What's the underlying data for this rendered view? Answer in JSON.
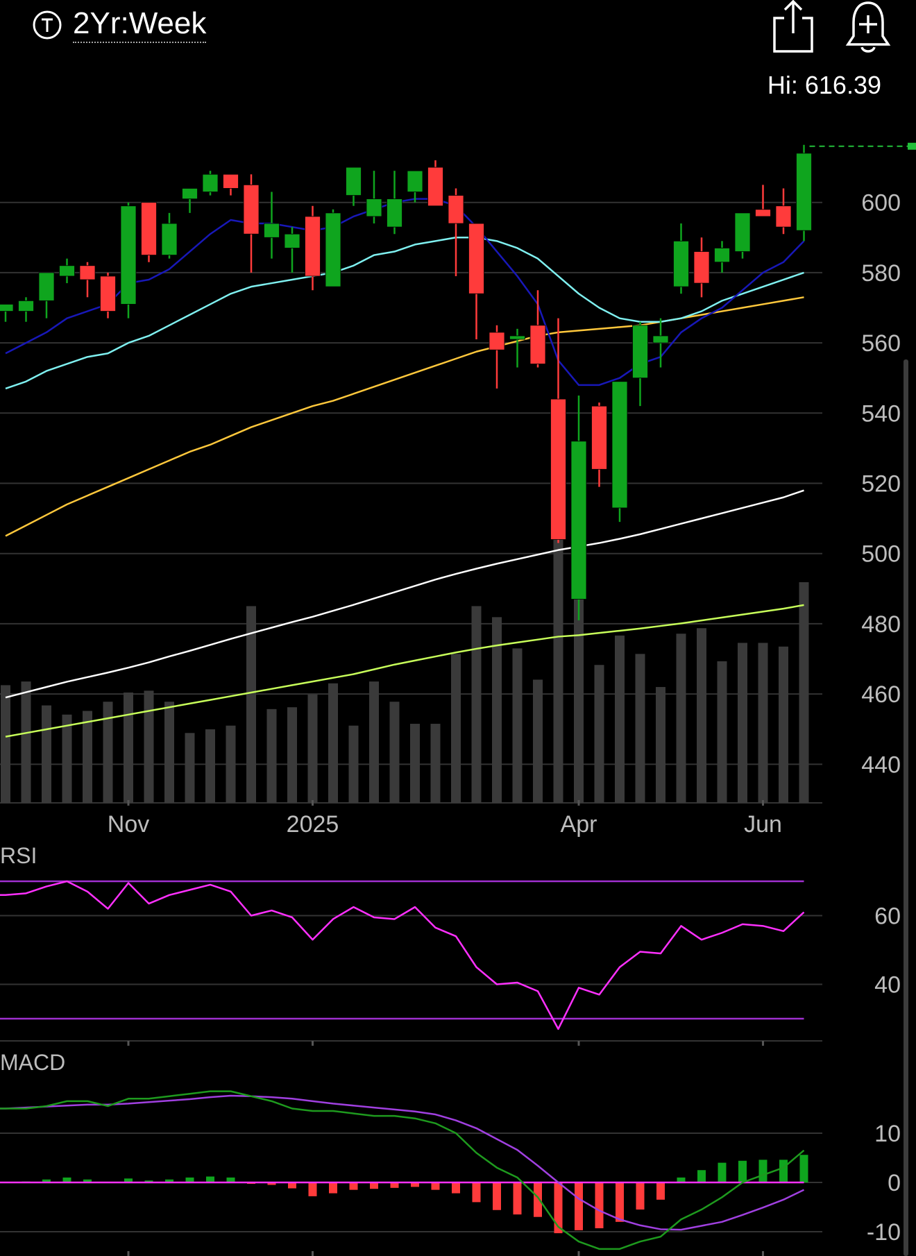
{
  "header": {
    "period_icon": "circle-t-icon",
    "period_label": "2Yr:Week",
    "share_icon": "share-icon",
    "alert_icon": "bell-plus-icon",
    "high_label": "Hi: 616.39"
  },
  "colors": {
    "background": "#000000",
    "up": "#0fa51e",
    "down": "#ff3b3b",
    "volume": "#3a3a3a",
    "grid": "#333333",
    "ma_fast": "#1818b8",
    "ma_mid": "#7ff0f0",
    "ma_slow": "#ffc83c",
    "ma_long": "#ffffff",
    "volume_ma": "#c8ff5a",
    "rsi": "#ff30ff",
    "rsi_bands": "#a030d0",
    "macd": "#1e9a1e",
    "macd_signal": "#a040e0",
    "macd_zero": "#ff30ff",
    "hi_line": "#22c03a"
  },
  "chart_data": [
    {
      "type": "candlestick",
      "title": "",
      "y_ticks": [
        440,
        460,
        480,
        500,
        520,
        540,
        560,
        580,
        600
      ],
      "ylim": [
        429,
        628
      ],
      "x_tick_labels": [
        {
          "label": "Nov",
          "index": 6
        },
        {
          "label": "2025",
          "index": 15
        },
        {
          "label": "Apr",
          "index": 28
        },
        {
          "label": "Jun",
          "index": 37
        }
      ],
      "high_value": 616.39,
      "candles": [
        {
          "o": 569,
          "h": 571,
          "l": 566,
          "c": 571
        },
        {
          "o": 569,
          "h": 573,
          "l": 566,
          "c": 572
        },
        {
          "o": 572,
          "h": 580,
          "l": 567,
          "c": 580
        },
        {
          "o": 579,
          "h": 584,
          "l": 577,
          "c": 582
        },
        {
          "o": 582,
          "h": 583,
          "l": 573,
          "c": 578
        },
        {
          "o": 579,
          "h": 580,
          "l": 567,
          "c": 569
        },
        {
          "o": 571,
          "h": 600,
          "l": 567,
          "c": 599
        },
        {
          "o": 600,
          "h": 600,
          "l": 583,
          "c": 585
        },
        {
          "o": 585,
          "h": 597,
          "l": 584,
          "c": 594
        },
        {
          "o": 601,
          "h": 604,
          "l": 597,
          "c": 604
        },
        {
          "o": 603,
          "h": 609,
          "l": 602,
          "c": 608
        },
        {
          "o": 608,
          "h": 608,
          "l": 602,
          "c": 604
        },
        {
          "o": 605,
          "h": 608,
          "l": 580,
          "c": 591
        },
        {
          "o": 590,
          "h": 603,
          "l": 584,
          "c": 594
        },
        {
          "o": 587,
          "h": 593,
          "l": 580,
          "c": 591
        },
        {
          "o": 596,
          "h": 599,
          "l": 575,
          "c": 579
        },
        {
          "o": 576,
          "h": 598,
          "l": 576,
          "c": 597
        },
        {
          "o": 602,
          "h": 610,
          "l": 599,
          "c": 610
        },
        {
          "o": 596,
          "h": 609,
          "l": 594,
          "c": 601
        },
        {
          "o": 593,
          "h": 609,
          "l": 591,
          "c": 601
        },
        {
          "o": 603,
          "h": 609,
          "l": 600,
          "c": 609
        },
        {
          "o": 610,
          "h": 612,
          "l": 599,
          "c": 599
        },
        {
          "o": 602,
          "h": 604,
          "l": 579,
          "c": 594
        },
        {
          "o": 594,
          "h": 594,
          "l": 561,
          "c": 574
        },
        {
          "o": 563,
          "h": 565,
          "l": 547,
          "c": 558
        },
        {
          "o": 561,
          "h": 564,
          "l": 553,
          "c": 562
        },
        {
          "o": 565,
          "h": 575,
          "l": 553,
          "c": 554
        },
        {
          "o": 544,
          "h": 567,
          "l": 503,
          "c": 504
        },
        {
          "o": 487,
          "h": 545,
          "l": 481,
          "c": 532
        },
        {
          "o": 542,
          "h": 543,
          "l": 519,
          "c": 524
        },
        {
          "o": 513,
          "h": 548,
          "l": 509,
          "c": 549
        },
        {
          "o": 550,
          "h": 566,
          "l": 542,
          "c": 565
        },
        {
          "o": 560,
          "h": 567,
          "l": 553,
          "c": 562
        },
        {
          "o": 576,
          "h": 594,
          "l": 574,
          "c": 589
        },
        {
          "o": 586,
          "h": 590,
          "l": 573,
          "c": 577
        },
        {
          "o": 583,
          "h": 589,
          "l": 580,
          "c": 587
        },
        {
          "o": 586,
          "h": 597,
          "l": 584,
          "c": 597
        },
        {
          "o": 598,
          "h": 605,
          "l": 596,
          "c": 596
        },
        {
          "o": 599,
          "h": 604,
          "l": 591,
          "c": 593
        },
        {
          "o": 592,
          "h": 616.39,
          "l": 589,
          "c": 614
        }
      ],
      "volume": [
        32,
        33,
        26.5,
        24,
        25,
        27.5,
        30,
        30.5,
        27.5,
        19,
        20,
        21,
        53.5,
        25.5,
        26,
        29.5,
        32.5,
        21,
        33,
        27.5,
        21.5,
        21.5,
        40.5,
        53.5,
        50.5,
        42,
        33.5,
        73,
        68,
        37.5,
        45.5,
        40.5,
        31.5,
        46,
        47.5,
        38.5,
        43.5,
        43.5,
        42.5,
        60
      ],
      "volume_max": 100,
      "volume_ma": [
        18,
        19,
        20,
        21,
        22,
        23,
        24,
        25,
        26,
        27,
        28,
        29,
        30,
        31,
        32,
        33,
        34,
        35,
        36.3,
        37.6,
        38.7,
        39.8,
        40.9,
        41.9,
        42.8,
        43.6,
        44.4,
        45.2,
        45.6,
        46.2,
        46.8,
        47.4,
        48.1,
        48.8,
        49.6,
        50.4,
        51.2,
        52.0,
        52.8,
        53.8
      ],
      "ma_fast": [
        557,
        560,
        563,
        567,
        569,
        571,
        577,
        578,
        581,
        586,
        591,
        595,
        594,
        594,
        593,
        592,
        593,
        596,
        598,
        600,
        601,
        601,
        599,
        593,
        586,
        579,
        571,
        555,
        548,
        548,
        550,
        554,
        556,
        563,
        567,
        570,
        575,
        580,
        583,
        589
      ],
      "ma_mid": [
        547,
        549,
        552,
        554,
        556,
        557,
        560,
        562,
        565,
        568,
        571,
        574,
        576,
        577,
        578,
        579,
        580,
        582,
        585,
        586,
        588,
        589,
        590,
        590,
        589,
        587,
        584,
        579,
        574,
        570,
        567,
        566,
        566,
        567,
        569,
        572,
        574,
        576,
        578,
        580
      ],
      "ma_slow": [
        505,
        508,
        511,
        514,
        516.5,
        519,
        521.5,
        524,
        526.5,
        529,
        531,
        533.5,
        536,
        538,
        540,
        542,
        543.5,
        545.5,
        547.5,
        549.5,
        551.5,
        553.5,
        555.5,
        557.5,
        559,
        560.5,
        562,
        563,
        563.5,
        564,
        564.5,
        565,
        566,
        567,
        568,
        569,
        570,
        571,
        572,
        573
      ],
      "ma_long": [
        459,
        460.5,
        462,
        463.5,
        464.8,
        466.1,
        467.5,
        469,
        470.7,
        472.3,
        474,
        475.7,
        477.3,
        478.9,
        480.5,
        482,
        483.7,
        485.4,
        487.2,
        489,
        490.8,
        492.6,
        494.2,
        495.7,
        497.1,
        498.4,
        499.7,
        501,
        502,
        503,
        504.2,
        505.5,
        507,
        508.5,
        510,
        511.5,
        513,
        514.5,
        516,
        518
      ]
    },
    {
      "type": "line",
      "title": "RSI",
      "y_ticks": [
        40,
        60
      ],
      "ylim": [
        23.5,
        70
      ],
      "bands": [
        30,
        70
      ],
      "x_tick_indices": [
        6,
        15,
        28,
        37
      ],
      "values": [
        66,
        66.5,
        68.5,
        70,
        67,
        62,
        69.5,
        63.5,
        66,
        67.5,
        69,
        67,
        60,
        61.5,
        59.5,
        53,
        59,
        62.5,
        59.5,
        59,
        62.5,
        56.5,
        54,
        45,
        40,
        40.5,
        38,
        27,
        39,
        37,
        45,
        49.5,
        49,
        57,
        53,
        55,
        57.5,
        57,
        55.5,
        61
      ]
    },
    {
      "type": "bar+line",
      "title": "MACD",
      "y_ticks": [
        10,
        0,
        -10
      ],
      "ylim": [
        -13,
        22
      ],
      "x_tick_indices": [
        6,
        15,
        28,
        37
      ],
      "macd": [
        15,
        15,
        15.5,
        16.5,
        16.5,
        15.5,
        17,
        17,
        17.5,
        18,
        18.5,
        18.5,
        17.5,
        16.5,
        15,
        14.5,
        14.5,
        14,
        13.5,
        13.5,
        13,
        12,
        10,
        6,
        3,
        1,
        -3,
        -9,
        -12,
        -13.5,
        -13.5,
        -12,
        -11,
        -7.5,
        -5.5,
        -3,
        0,
        1.5,
        3,
        6.5
      ],
      "signal": [
        15,
        15.2,
        15.4,
        15.6,
        15.8,
        15.8,
        16,
        16.3,
        16.6,
        16.9,
        17.3,
        17.6,
        17.5,
        17.3,
        17,
        16.5,
        16,
        15.6,
        15.2,
        14.8,
        14.4,
        13.8,
        12.6,
        11,
        8.8,
        6.6,
        3.4,
        0,
        -3.3,
        -5.7,
        -7.5,
        -8.7,
        -9.5,
        -9.6,
        -8.8,
        -8,
        -6.6,
        -5.1,
        -3.5,
        -1.5
      ],
      "histogram": [
        0,
        0.2,
        0.6,
        1,
        0.6,
        0,
        0.8,
        0.4,
        0.6,
        1,
        1.2,
        1,
        -0.1,
        -0.5,
        -1.2,
        -2.8,
        -2.2,
        -1.5,
        -1.3,
        -1.1,
        -0.9,
        -1.5,
        -2.2,
        -4,
        -5.6,
        -6.5,
        -7,
        -10.3,
        -9.7,
        -9.3,
        -8,
        -5.5,
        -3.5,
        1,
        2.5,
        4,
        4.4,
        4.6,
        4.6,
        5.6
      ]
    }
  ]
}
